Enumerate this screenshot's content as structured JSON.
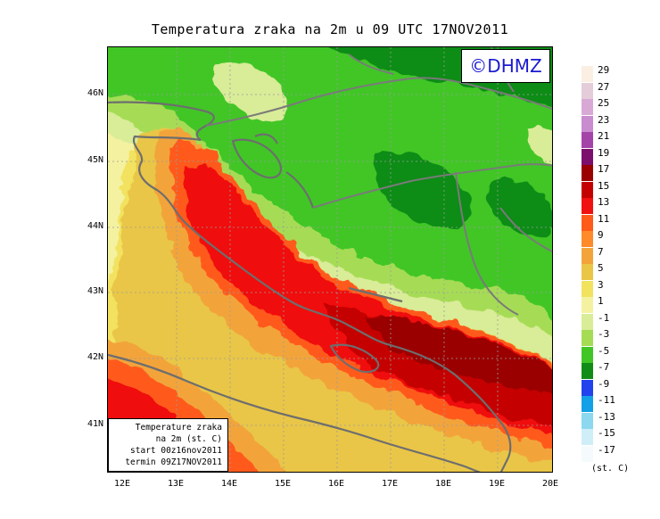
{
  "title": "Temperatura zraka na 2m u 09 UTC 17NOV2011",
  "logo": "©DHMZ",
  "info_box": {
    "line1": "Temperature zraka",
    "line2": "na 2m (st. C)",
    "line3": "start 00z16nov2011",
    "line4": "termin 09Z17NOV2011"
  },
  "latitude_labels": [
    "46N",
    "45N",
    "44N",
    "43N",
    "42N",
    "41N"
  ],
  "longitude_labels": [
    "12E",
    "13E",
    "14E",
    "15E",
    "16E",
    "17E",
    "18E",
    "19E",
    "20E"
  ],
  "legend": {
    "unit": "(st. C)",
    "labels": [
      "29",
      "27",
      "25",
      "23",
      "21",
      "19",
      "17",
      "15",
      "13",
      "11",
      "9",
      "7",
      "5",
      "3",
      "1",
      "-1",
      "-3",
      "-5",
      "-7",
      "-9",
      "-11",
      "-13",
      "-15",
      "-17"
    ],
    "colors": [
      "#fbeee3",
      "#e4ccd9",
      "#d9a9d6",
      "#c88ccf",
      "#a544a8",
      "#7c0e6c",
      "#9a0000",
      "#c50000",
      "#f01010",
      "#ff5a1a",
      "#ff8a2a",
      "#f2a43a",
      "#e9c646",
      "#f2e25e",
      "#f4f2a0",
      "#d9ec98",
      "#a6dc55",
      "#41c626",
      "#118c16",
      "#2242ee",
      "#12a0e6",
      "#8cd8ee",
      "#cfeef7",
      "#f5fbfd"
    ]
  },
  "colors": {
    "grid_line": "#9c9c9c",
    "coastline": "#6e6e6e",
    "logo_text": "#1a1ad0"
  }
}
